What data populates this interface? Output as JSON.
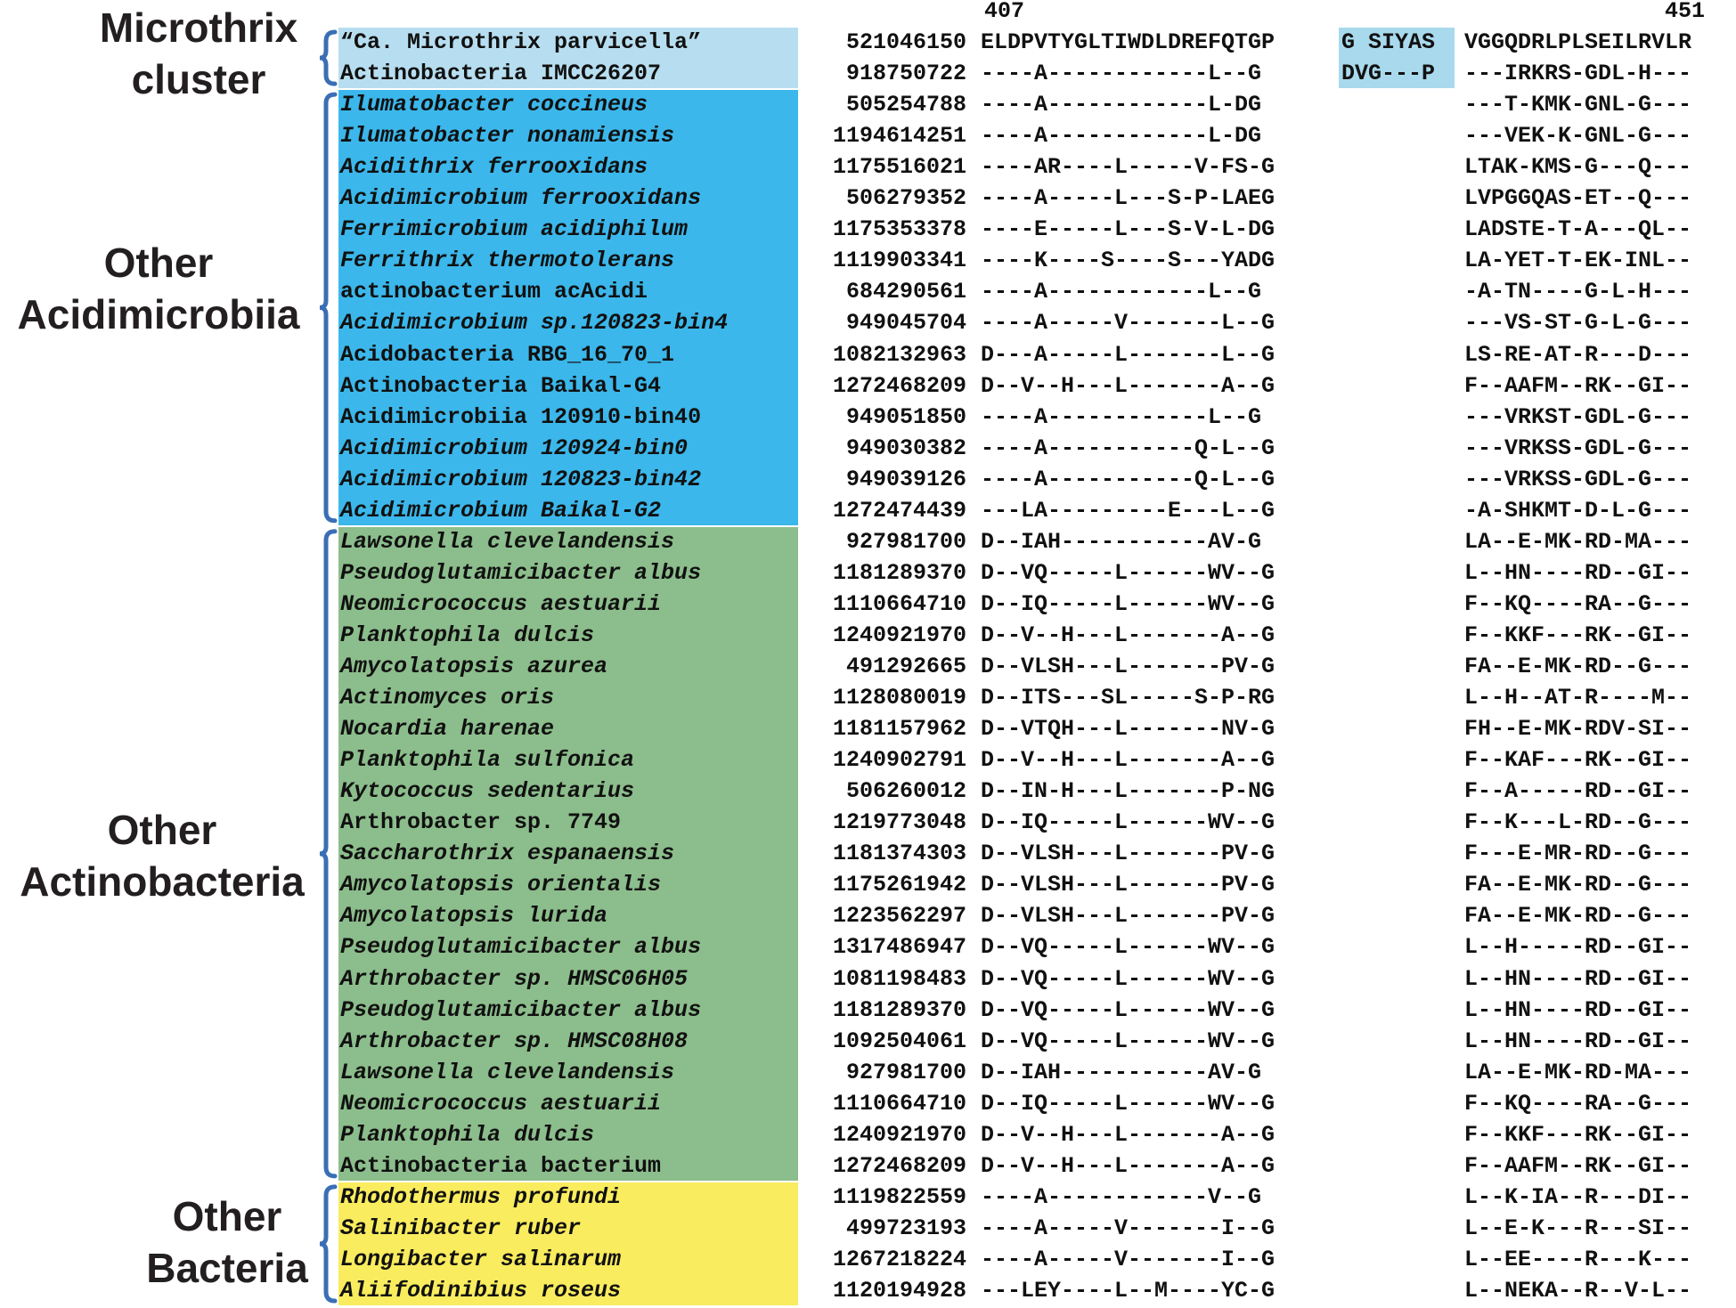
{
  "header": {
    "pos_start": "407",
    "pos_end": "451"
  },
  "groups": [
    {
      "name": "Microthrix cluster",
      "lines": [
        "Microthrix",
        "cluster"
      ],
      "color": "#b7def0"
    },
    {
      "name": "Other Acidimicrobiia",
      "lines": [
        "Other",
        "Acidimicrobiia"
      ],
      "color": "#3bb7eb"
    },
    {
      "name": "Other Actinobacteria",
      "lines": [
        "Other",
        "Actinobacteria"
      ],
      "color": "#8cbd8c"
    },
    {
      "name": "Other Bacteria",
      "lines": [
        "Other",
        "Bacteria"
      ],
      "color": "#f9ec5e"
    }
  ],
  "insert_highlight_color": "#a9d9ec",
  "bracket_color": "#3a6fb5",
  "rows": [
    {
      "group": 0,
      "italic": false,
      "species": "“Ca. Microthrix parvicella”",
      "gi": "521046150",
      "segA": "ELDPVTYGLTIWDLDREFQTGP",
      "segB": "G SIYAS",
      "segC": "VGGQDRLPLSEILRVLR"
    },
    {
      "group": 0,
      "italic": false,
      "species": "Actinobacteria IMCC26207",
      "gi": "918750722",
      "segA": "----A------------L--G",
      "segB": "DVG---P",
      "segC": "---IRKRS-GDL-H---"
    },
    {
      "group": 1,
      "italic": true,
      "species": "Ilumatobacter coccineus",
      "gi": "505254788",
      "segA": "----A------------L-DG",
      "segB": "",
      "segC": "---T-KMK-GNL-G---"
    },
    {
      "group": 1,
      "italic": true,
      "species": "Ilumatobacter nonamiensis",
      "gi": "1194614251",
      "segA": "----A------------L-DG",
      "segB": "",
      "segC": "---VEK-K-GNL-G---"
    },
    {
      "group": 1,
      "italic": true,
      "species": "Acidithrix ferrooxidans",
      "gi": "1175516021",
      "segA": "----AR----L-----V-FS-G",
      "segB": "",
      "segC": "LTAK-KMS-G---Q---"
    },
    {
      "group": 1,
      "italic": true,
      "species": "Acidimicrobium ferrooxidans",
      "gi": "506279352",
      "segA": "----A-----L---S-P-LAEG",
      "segB": "",
      "segC": "LVPGGQAS-ET--Q---"
    },
    {
      "group": 1,
      "italic": true,
      "species": "Ferrimicrobium acidiphilum",
      "gi": "1175353378",
      "segA": "----E-----L---S-V-L-DG",
      "segB": "",
      "segC": "LADSTE-T-A---QL--"
    },
    {
      "group": 1,
      "italic": true,
      "species": "Ferrithrix thermotolerans",
      "gi": "1119903341",
      "segA": "----K----S----S---YADG",
      "segB": "",
      "segC": "LA-YET-T-EK-INL--"
    },
    {
      "group": 1,
      "italic": false,
      "species": "actinobacterium acAcidi",
      "gi": "684290561",
      "segA": "----A------------L--G",
      "segB": "",
      "segC": "-A-TN----G-L-H---"
    },
    {
      "group": 1,
      "italic": true,
      "species": "Acidimicrobium sp.120823-bin4",
      "gi": "949045704",
      "segA": "----A-----V-------L--G",
      "segB": "",
      "segC": "---VS-ST-G-L-G---"
    },
    {
      "group": 1,
      "italic": false,
      "species": "Acidobacteria RBG_16_70_1",
      "gi": "1082132963",
      "segA": "D---A-----L-------L--G",
      "segB": "",
      "segC": "LS-RE-AT-R---D---"
    },
    {
      "group": 1,
      "italic": false,
      "species": "Actinobacteria Baikal-G4",
      "gi": "1272468209",
      "segA": "D--V--H---L-------A--G",
      "segB": "",
      "segC": "F--AAFM--RK--GI--"
    },
    {
      "group": 1,
      "italic": false,
      "species": "Acidimicrobiia 120910-bin40",
      "gi": "949051850",
      "segA": "----A------------L--G",
      "segB": "",
      "segC": "---VRKST-GDL-G---"
    },
    {
      "group": 1,
      "italic": true,
      "species": "Acidimicrobium 120924-bin0",
      "gi": "949030382",
      "segA": "----A-----------Q-L--G",
      "segB": "",
      "segC": "---VRKSS-GDL-G---"
    },
    {
      "group": 1,
      "italic": true,
      "species": "Acidimicrobium 120823-bin42",
      "gi": "949039126",
      "segA": "----A-----------Q-L--G",
      "segB": "",
      "segC": "---VRKSS-GDL-G---"
    },
    {
      "group": 1,
      "italic": true,
      "species": "Acidimicrobium Baikal-G2",
      "gi": "1272474439",
      "segA": "---LA---------E---L--G",
      "segB": "",
      "segC": "-A-SHKMT-D-L-G---"
    },
    {
      "group": 2,
      "italic": true,
      "species": "Lawsonella clevelandensis",
      "gi": "927981700",
      "segA": "D--IAH-----------AV-G",
      "segB": "",
      "segC": "LA--E-MK-RD-MA---"
    },
    {
      "group": 2,
      "italic": true,
      "species": "Pseudoglutamicibacter albus",
      "gi": "1181289370",
      "segA": "D--VQ-----L------WV--G",
      "segB": "",
      "segC": "L--HN----RD--GI--"
    },
    {
      "group": 2,
      "italic": true,
      "species": "Neomicrococcus aestuarii",
      "gi": "1110664710",
      "segA": "D--IQ-----L------WV--G",
      "segB": "",
      "segC": "F--KQ----RA--G---"
    },
    {
      "group": 2,
      "italic": true,
      "species": "Planktophila dulcis",
      "gi": "1240921970",
      "segA": "D--V--H---L-------A--G",
      "segB": "",
      "segC": "F--KKF---RK--GI--"
    },
    {
      "group": 2,
      "italic": true,
      "species": "Amycolatopsis azurea",
      "gi": "491292665",
      "segA": "D--VLSH---L-------PV-G",
      "segB": "",
      "segC": "FA--E-MK-RD--G---"
    },
    {
      "group": 2,
      "italic": true,
      "species": "Actinomyces oris",
      "gi": "1128080019",
      "segA": "D--ITS---SL-----S-P-RG",
      "segB": "",
      "segC": "L--H--AT-R----M--"
    },
    {
      "group": 2,
      "italic": true,
      "species": "Nocardia harenae",
      "gi": "1181157962",
      "segA": "D--VTQH---L-------NV-G",
      "segB": "",
      "segC": "FH--E-MK-RDV-SI--"
    },
    {
      "group": 2,
      "italic": true,
      "species": "Planktophila sulfonica",
      "gi": "1240902791",
      "segA": "D--V--H---L-------A--G",
      "segB": "",
      "segC": "F--KAF---RK--GI--"
    },
    {
      "group": 2,
      "italic": true,
      "species": "Kytococcus sedentarius",
      "gi": "506260012",
      "segA": "D--IN-H---L-------P-NG",
      "segB": "",
      "segC": "F--A-----RD--GI--"
    },
    {
      "group": 2,
      "italic": false,
      "species": "Arthrobacter sp. 7749",
      "gi": "1219773048",
      "segA": "D--IQ-----L------WV--G",
      "segB": "",
      "segC": "F--K---L-RD--G---"
    },
    {
      "group": 2,
      "italic": true,
      "species": "Saccharothrix espanaensis",
      "gi": "1181374303",
      "segA": "D--VLSH---L-------PV-G",
      "segB": "",
      "segC": "F---E-MR-RD--G---"
    },
    {
      "group": 2,
      "italic": true,
      "species": "Amycolatopsis orientalis",
      "gi": "1175261942",
      "segA": "D--VLSH---L-------PV-G",
      "segB": "",
      "segC": "FA--E-MK-RD--G---"
    },
    {
      "group": 2,
      "italic": true,
      "species": "Amycolatopsis lurida",
      "gi": "1223562297",
      "segA": "D--VLSH---L-------PV-G",
      "segB": "",
      "segC": "FA--E-MK-RD--G---"
    },
    {
      "group": 2,
      "italic": true,
      "species": "Pseudoglutamicibacter albus",
      "gi": "1317486947",
      "segA": "D--VQ-----L------WV--G",
      "segB": "",
      "segC": "L--H-----RD--GI--"
    },
    {
      "group": 2,
      "italic": true,
      "species": "Arthrobacter sp. HMSC06H05",
      "gi": "1081198483",
      "segA": "D--VQ-----L------WV--G",
      "segB": "",
      "segC": "L--HN----RD--GI--"
    },
    {
      "group": 2,
      "italic": true,
      "species": "Pseudoglutamicibacter albus",
      "gi": "1181289370",
      "segA": "D--VQ-----L------WV--G",
      "segB": "",
      "segC": "L--HN----RD--GI--"
    },
    {
      "group": 2,
      "italic": true,
      "species": "Arthrobacter sp. HMSC08H08",
      "gi": "1092504061",
      "segA": "D--VQ-----L------WV--G",
      "segB": "",
      "segC": "L--HN----RD--GI--"
    },
    {
      "group": 2,
      "italic": true,
      "species": "Lawsonella clevelandensis",
      "gi": "927981700",
      "segA": "D--IAH-----------AV-G",
      "segB": "",
      "segC": "LA--E-MK-RD-MA---"
    },
    {
      "group": 2,
      "italic": true,
      "species": "Neomicrococcus aestuarii",
      "gi": "1110664710",
      "segA": "D--IQ-----L------WV--G",
      "segB": "",
      "segC": "F--KQ----RA--G---"
    },
    {
      "group": 2,
      "italic": true,
      "species": "Planktophila dulcis",
      "gi": "1240921970",
      "segA": "D--V--H---L-------A--G",
      "segB": "",
      "segC": "F--KKF---RK--GI--"
    },
    {
      "group": 2,
      "italic": false,
      "species": "Actinobacteria bacterium",
      "gi": "1272468209",
      "segA": "D--V--H---L-------A--G",
      "segB": "",
      "segC": "F--AAFM--RK--GI--"
    },
    {
      "group": 3,
      "italic": true,
      "species": "Rhodothermus profundi",
      "gi": "1119822559",
      "segA": "----A------------V--G",
      "segB": "",
      "segC": "L--K-IA--R---DI--"
    },
    {
      "group": 3,
      "italic": true,
      "species": "Salinibacter ruber",
      "gi": "499723193",
      "segA": "----A-----V-------I--G",
      "segB": "",
      "segC": "L--E-K---R---SI--"
    },
    {
      "group": 3,
      "italic": true,
      "species": "Longibacter salinarum",
      "gi": "1267218224",
      "segA": "----A-----V-------I--G",
      "segB": "",
      "segC": "L--EE----R---K---"
    },
    {
      "group": 3,
      "italic": true,
      "species": "Aliifodinibius roseus",
      "gi": "1120194928",
      "segA": "---LEY----L--M----YC-G",
      "segB": "",
      "segC": "L--NEKA--R--V-L--"
    }
  ]
}
